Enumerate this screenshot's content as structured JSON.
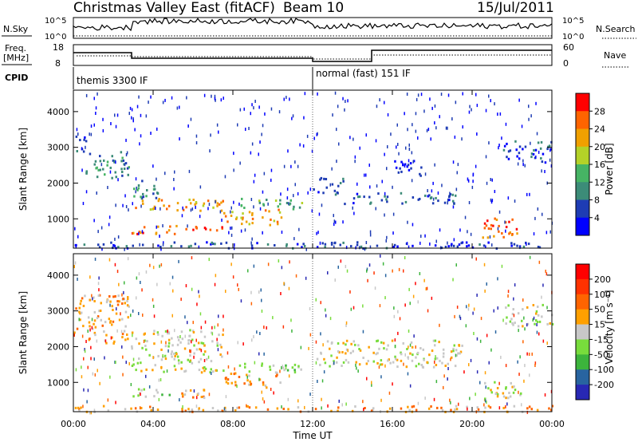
{
  "header": {
    "title": "Christmas Valley East (fitACF)",
    "beam": "Beam 10",
    "date": "15/Jul/2011"
  },
  "params": {
    "nsky_label": "N.Sky",
    "nsky_ticks": [
      "10^5",
      "10^0"
    ],
    "nsearch_label": "N.Search",
    "freq_label": "Freq.",
    "freq_unit": "[MHz]",
    "freq_ticks": [
      "18",
      "8"
    ],
    "nave_label": "Nave",
    "nave_ticks": [
      "60",
      "0"
    ],
    "cpid_label": "CPID",
    "cpid_modes": [
      {
        "start": 0,
        "end": 12,
        "label": "themis 3300 IF"
      },
      {
        "start": 12,
        "end": 24,
        "label": "normal (fast) 151 IF"
      }
    ]
  },
  "colors": {
    "power": [
      "#0000ff",
      "#1e3cb4",
      "#3c8c78",
      "#46b464",
      "#b4d228",
      "#f0a000",
      "#ff6400",
      "#ff0000"
    ],
    "velocity": [
      "#2828b4",
      "#2864a0",
      "#3cb43c",
      "#78dc3c",
      "#c8c8c8",
      "#ffa000",
      "#ff6400",
      "#ff3200",
      "#ff0000"
    ]
  },
  "chart_data": [
    {
      "type": "heatmap",
      "name": "power",
      "ylabel": "Slant Range [km]",
      "ylim": [
        180,
        4600
      ],
      "xlim": [
        0,
        24
      ],
      "yticks": [
        "1000",
        "2000",
        "3000",
        "4000"
      ],
      "colorbar_label": "Power [dB]",
      "colorbar_ticks": [
        "4",
        "8",
        "12",
        "16",
        "20",
        "24",
        "28"
      ],
      "bands": [
        {
          "x0": 0,
          "x1": 0.6,
          "r0": 2800,
          "r1": 3400,
          "level": 1
        },
        {
          "x0": 0.6,
          "x1": 2.8,
          "r0": 2100,
          "r1": 2900,
          "level": 2
        },
        {
          "x0": 2.8,
          "x1": 4.5,
          "r0": 1600,
          "r1": 2100,
          "level": 2
        },
        {
          "x0": 2.9,
          "x1": 7.5,
          "r0": 1250,
          "r1": 1600,
          "level": 5
        },
        {
          "x0": 2.9,
          "x1": 7.5,
          "r0": 600,
          "r1": 850,
          "level": 6
        },
        {
          "x0": 7.5,
          "x1": 10.5,
          "r0": 850,
          "r1": 1300,
          "level": 5
        },
        {
          "x0": 8.3,
          "x1": 11.5,
          "r0": 1300,
          "r1": 1600,
          "level": 3
        },
        {
          "x0": 12.0,
          "x1": 13.5,
          "r0": 1700,
          "r1": 2200,
          "level": 1
        },
        {
          "x0": 13.5,
          "x1": 19.5,
          "r0": 1450,
          "r1": 1750,
          "level": 1
        },
        {
          "x0": 16.0,
          "x1": 17.5,
          "r0": 2200,
          "r1": 2700,
          "level": 1
        },
        {
          "x0": 20.5,
          "x1": 22.5,
          "r0": 500,
          "r1": 1100,
          "level": 6
        },
        {
          "x0": 21.5,
          "x1": 24,
          "r0": 2600,
          "r1": 3200,
          "level": 1
        },
        {
          "x0": 0,
          "x1": 24,
          "r0": 200,
          "r1": 380,
          "level": 1
        }
      ]
    },
    {
      "type": "heatmap",
      "name": "velocity",
      "ylabel": "Slant Range [km]",
      "xlabel": "Time UT",
      "ylim": [
        180,
        4600
      ],
      "xlim": [
        0,
        24
      ],
      "xticks": [
        "00:00",
        "04:00",
        "08:00",
        "12:00",
        "16:00",
        "20:00",
        "00:00"
      ],
      "yticks": [
        "1000",
        "2000",
        "3000",
        "4000"
      ],
      "colorbar_label": "Velocity [m s⁻¹]",
      "colorbar_ticks": [
        "200",
        "100",
        "50",
        "15",
        "-15",
        "-50",
        "-100",
        "-200"
      ],
      "bands": [
        {
          "x0": 0,
          "x1": 2.8,
          "r0": 2100,
          "r1": 3500,
          "level": 5
        },
        {
          "x0": 2.8,
          "x1": 7.5,
          "r0": 1600,
          "r1": 2500,
          "level": 4
        },
        {
          "x0": 2.9,
          "x1": 7.5,
          "r0": 1300,
          "r1": 1600,
          "level": 4
        },
        {
          "x0": 2.9,
          "x1": 5.0,
          "r0": 600,
          "r1": 850,
          "level": 3
        },
        {
          "x0": 5.0,
          "x1": 7.5,
          "r0": 600,
          "r1": 850,
          "level": 5
        },
        {
          "x0": 7.5,
          "x1": 10.5,
          "r0": 850,
          "r1": 1300,
          "level": 5
        },
        {
          "x0": 8.3,
          "x1": 11.5,
          "r0": 1300,
          "r1": 1600,
          "level": 3
        },
        {
          "x0": 12.0,
          "x1": 19.5,
          "r0": 1450,
          "r1": 2200,
          "level": 4
        },
        {
          "x0": 20.5,
          "x1": 22.5,
          "r0": 500,
          "r1": 1100,
          "level": 4
        },
        {
          "x0": 21.5,
          "x1": 24,
          "r0": 2600,
          "r1": 3200,
          "level": 4
        },
        {
          "x0": 0,
          "x1": 24,
          "r0": 200,
          "r1": 380,
          "level": 5
        }
      ]
    }
  ]
}
